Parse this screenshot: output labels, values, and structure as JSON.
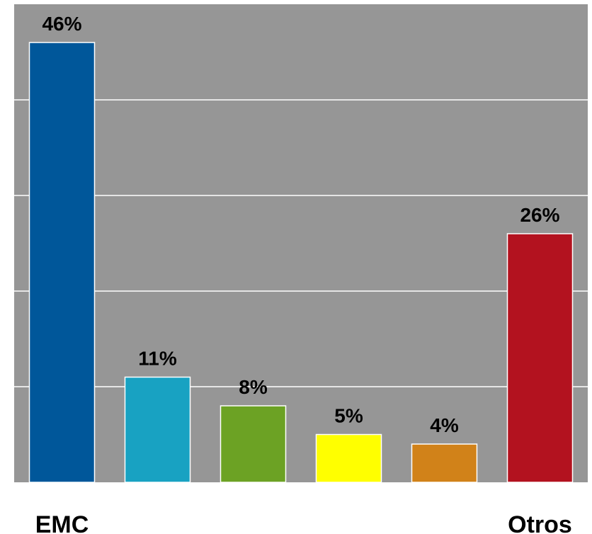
{
  "chart_data": {
    "type": "bar",
    "categories": [
      "EMC",
      "",
      "",
      "",
      "",
      "Otros"
    ],
    "values": [
      46,
      11,
      8,
      5,
      4,
      26
    ],
    "data_labels": [
      "46%",
      "11%",
      "8%",
      "5%",
      "4%",
      "26%"
    ],
    "colors": [
      "#00579A",
      "#18A2C2",
      "#6CA224",
      "#FFFF00",
      "#D18219",
      "#B3121F"
    ],
    "ylim": [
      0,
      50
    ],
    "y_grid_step": 10,
    "grid": true,
    "plot_background": "#969696",
    "gridline_color": "#FFFFFF",
    "bar_border_color": "#FFFFFF",
    "title": "",
    "xlabel": "",
    "ylabel": ""
  }
}
